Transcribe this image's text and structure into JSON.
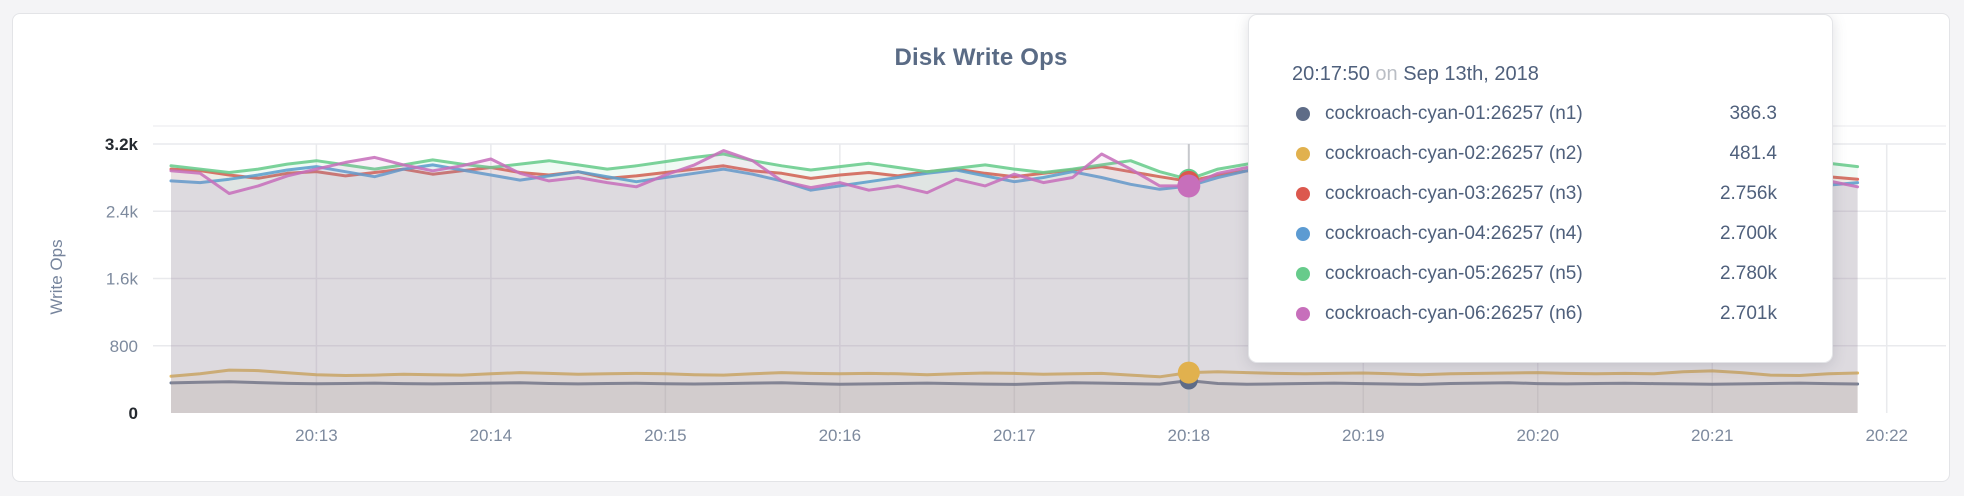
{
  "chart_data": {
    "type": "line",
    "title": "Disk Write Ops",
    "ylabel": "Write Ops",
    "ylim": [
      0,
      3200
    ],
    "grid": true,
    "y_ticks": [
      {
        "value": 0,
        "label": "0",
        "emphasis": true
      },
      {
        "value": 800,
        "label": "800",
        "emphasis": false
      },
      {
        "value": 1600,
        "label": "1.6k",
        "emphasis": false
      },
      {
        "value": 2400,
        "label": "2.4k",
        "emphasis": false
      },
      {
        "value": 3200,
        "label": "3.2k",
        "emphasis": true
      }
    ],
    "x_ticks": [
      "20:13",
      "20:14",
      "20:15",
      "20:16",
      "20:17",
      "20:18",
      "20:19",
      "20:20",
      "20:21",
      "20:22"
    ],
    "tooltip": {
      "time": "20:17:50",
      "conj": "on",
      "date": "Sep 13th, 2018",
      "hover_index": 35
    },
    "series": [
      {
        "name": "cockroach-cyan-01:26257 (n1)",
        "color": "#5e6c87",
        "hover_value": "386.3",
        "values": [
          358,
          366,
          372,
          362,
          352,
          347,
          351,
          356,
          350,
          346,
          351,
          356,
          361,
          351,
          346,
          351,
          355,
          349,
          345,
          350,
          356,
          361,
          350,
          341,
          346,
          351,
          356,
          350,
          344,
          340,
          351,
          361,
          356,
          350,
          344,
          386,
          351,
          341,
          346,
          351,
          356,
          350,
          345,
          340,
          351,
          356,
          361,
          350,
          346,
          351,
          355,
          350,
          346,
          341,
          346,
          351,
          356,
          350,
          345
        ]
      },
      {
        "name": "cockroach-cyan-02:26257 (n2)",
        "color": "#e1b14e",
        "hover_value": "481.4",
        "values": [
          438,
          468,
          510,
          504,
          479,
          456,
          446,
          451,
          461,
          456,
          451,
          466,
          481,
          471,
          461,
          466,
          471,
          466,
          456,
          451,
          466,
          481,
          471,
          466,
          471,
          466,
          456,
          466,
          476,
          471,
          461,
          466,
          471,
          451,
          431,
          481,
          491,
          481,
          471,
          466,
          471,
          476,
          466,
          456,
          466,
          471,
          476,
          481,
          471,
          466,
          471,
          466,
          491,
          501,
          481,
          451,
          446,
          466,
          476
        ]
      },
      {
        "name": "cockroach-cyan-03:26257 (n3)",
        "color": "#dc584e",
        "hover_value": "2.756k",
        "values": [
          2902,
          2882,
          2831,
          2792,
          2851,
          2872,
          2821,
          2861,
          2901,
          2841,
          2881,
          2921,
          2861,
          2831,
          2871,
          2791,
          2821,
          2861,
          2901,
          2941,
          2881,
          2851,
          2791,
          2831,
          2861,
          2821,
          2871,
          2901,
          2851,
          2811,
          2851,
          2891,
          2931,
          2871,
          2811,
          2756,
          2831,
          2881,
          2841,
          2791,
          2831,
          2871,
          2821,
          2761,
          2811,
          2861,
          2901,
          2851,
          2801,
          2841,
          2881,
          2931,
          2871,
          2821,
          2861,
          2811,
          2771,
          2811,
          2781
        ]
      },
      {
        "name": "cockroach-cyan-04:26257 (n4)",
        "color": "#5c9bd2",
        "hover_value": "2.700k",
        "values": [
          2761,
          2741,
          2781,
          2831,
          2891,
          2931,
          2871,
          2811,
          2901,
          2951,
          2891,
          2831,
          2771,
          2821,
          2871,
          2811,
          2751,
          2801,
          2851,
          2901,
          2841,
          2761,
          2651,
          2701,
          2751,
          2801,
          2851,
          2891,
          2821,
          2751,
          2801,
          2871,
          2801,
          2721,
          2661,
          2700,
          2801,
          2881,
          2931,
          2861,
          2791,
          2731,
          2781,
          2831,
          2771,
          2711,
          2761,
          2811,
          2861,
          2801,
          2841,
          2891,
          2951,
          2991,
          2921,
          2851,
          2781,
          2711,
          2741
        ]
      },
      {
        "name": "cockroach-cyan-05:26257 (n5)",
        "color": "#67cb8b",
        "hover_value": "2.780k",
        "values": [
          2941,
          2901,
          2861,
          2901,
          2961,
          3001,
          2951,
          2901,
          2951,
          3011,
          2961,
          2921,
          2961,
          3001,
          2951,
          2901,
          2941,
          2991,
          3041,
          3081,
          3001,
          2941,
          2891,
          2931,
          2971,
          2921,
          2871,
          2911,
          2951,
          2901,
          2861,
          2901,
          2951,
          3001,
          2871,
          2780,
          2901,
          2961,
          3011,
          2951,
          2901,
          2941,
          2981,
          2921,
          2861,
          2911,
          2961,
          3011,
          2951,
          2901,
          2951,
          3001,
          3051,
          2991,
          2931,
          2881,
          2921,
          2971,
          2931
        ]
      },
      {
        "name": "cockroach-cyan-06:26257 (n6)",
        "color": "#c76fbb",
        "hover_value": "2.701k",
        "values": [
          2881,
          2851,
          2611,
          2701,
          2821,
          2901,
          2981,
          3041,
          2951,
          2881,
          2941,
          3021,
          2851,
          2761,
          2801,
          2741,
          2691,
          2831,
          2951,
          3121,
          3001,
          2761,
          2681,
          2741,
          2651,
          2701,
          2621,
          2781,
          2701,
          2841,
          2741,
          2801,
          3081,
          2901,
          2701,
          2701,
          2851,
          2921,
          2761,
          2661,
          2701,
          2791,
          2851,
          2581,
          2721,
          2901,
          2961,
          2801,
          2701,
          2851,
          2961,
          3101,
          2921,
          2741,
          2801,
          2661,
          2701,
          2761,
          2691
        ]
      }
    ]
  }
}
